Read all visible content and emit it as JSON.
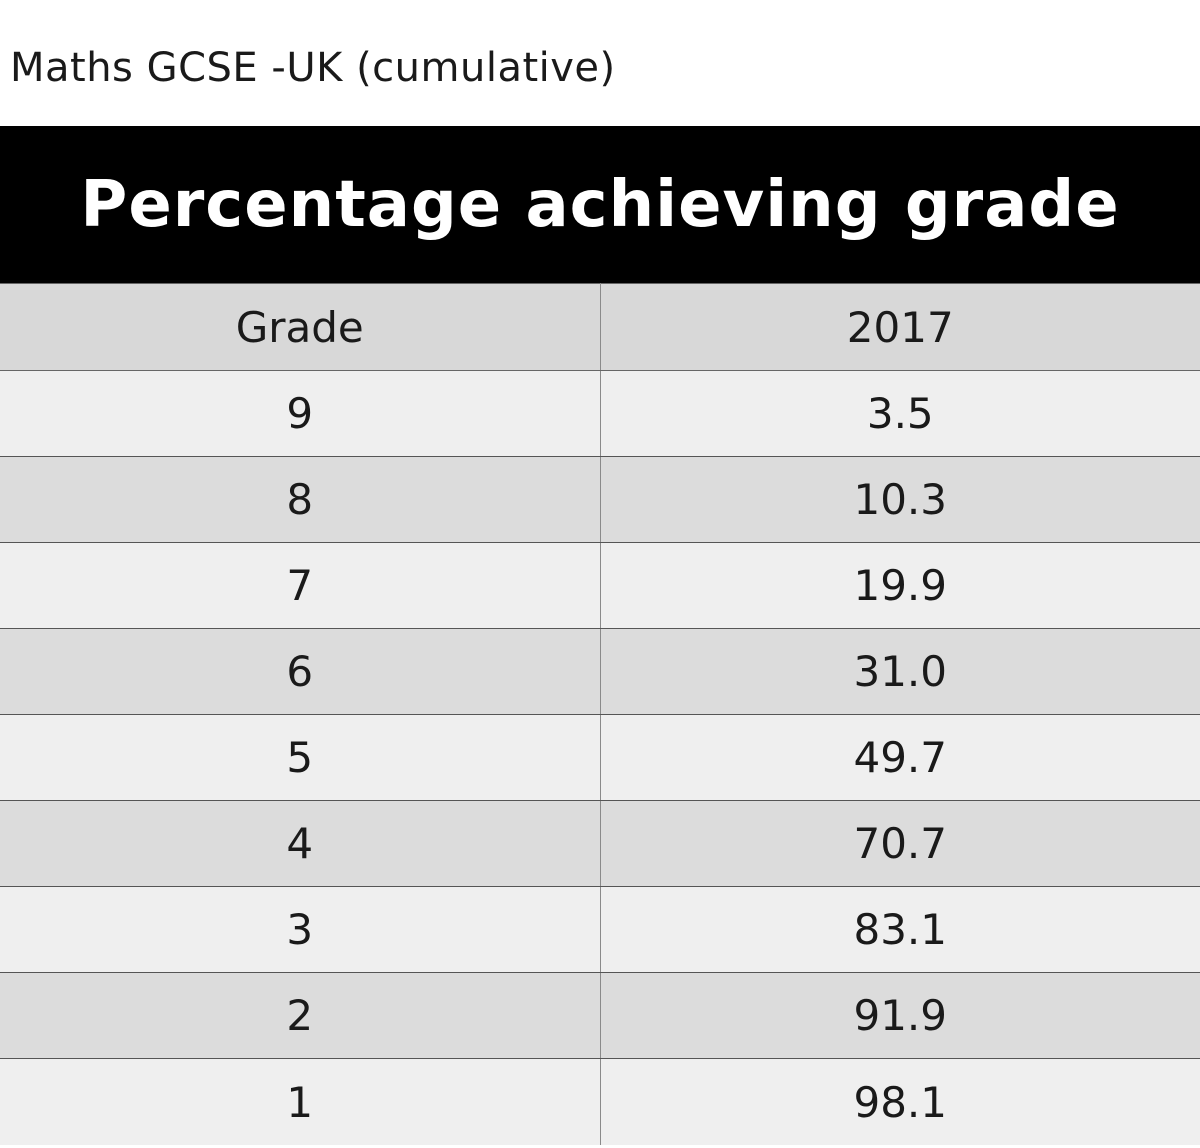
{
  "page_title": "Maths GCSE -UK (cumulative)",
  "colors": {
    "banner_bg": "#000000",
    "banner_text": "#ffffff",
    "header_bg": "#d8d8d8",
    "row_light": "#efefef",
    "row_dark": "#dcdcdc"
  },
  "chart_data": {
    "type": "table",
    "title": "Percentage achieving grade",
    "columns": [
      "Grade",
      "2017"
    ],
    "rows": [
      [
        "9",
        "3.5"
      ],
      [
        "8",
        "10.3"
      ],
      [
        "7",
        "19.9"
      ],
      [
        "6",
        "31.0"
      ],
      [
        "5",
        "49.7"
      ],
      [
        "4",
        "70.7"
      ],
      [
        "3",
        "83.1"
      ],
      [
        "2",
        "91.9"
      ],
      [
        "1",
        "98.1"
      ]
    ]
  }
}
